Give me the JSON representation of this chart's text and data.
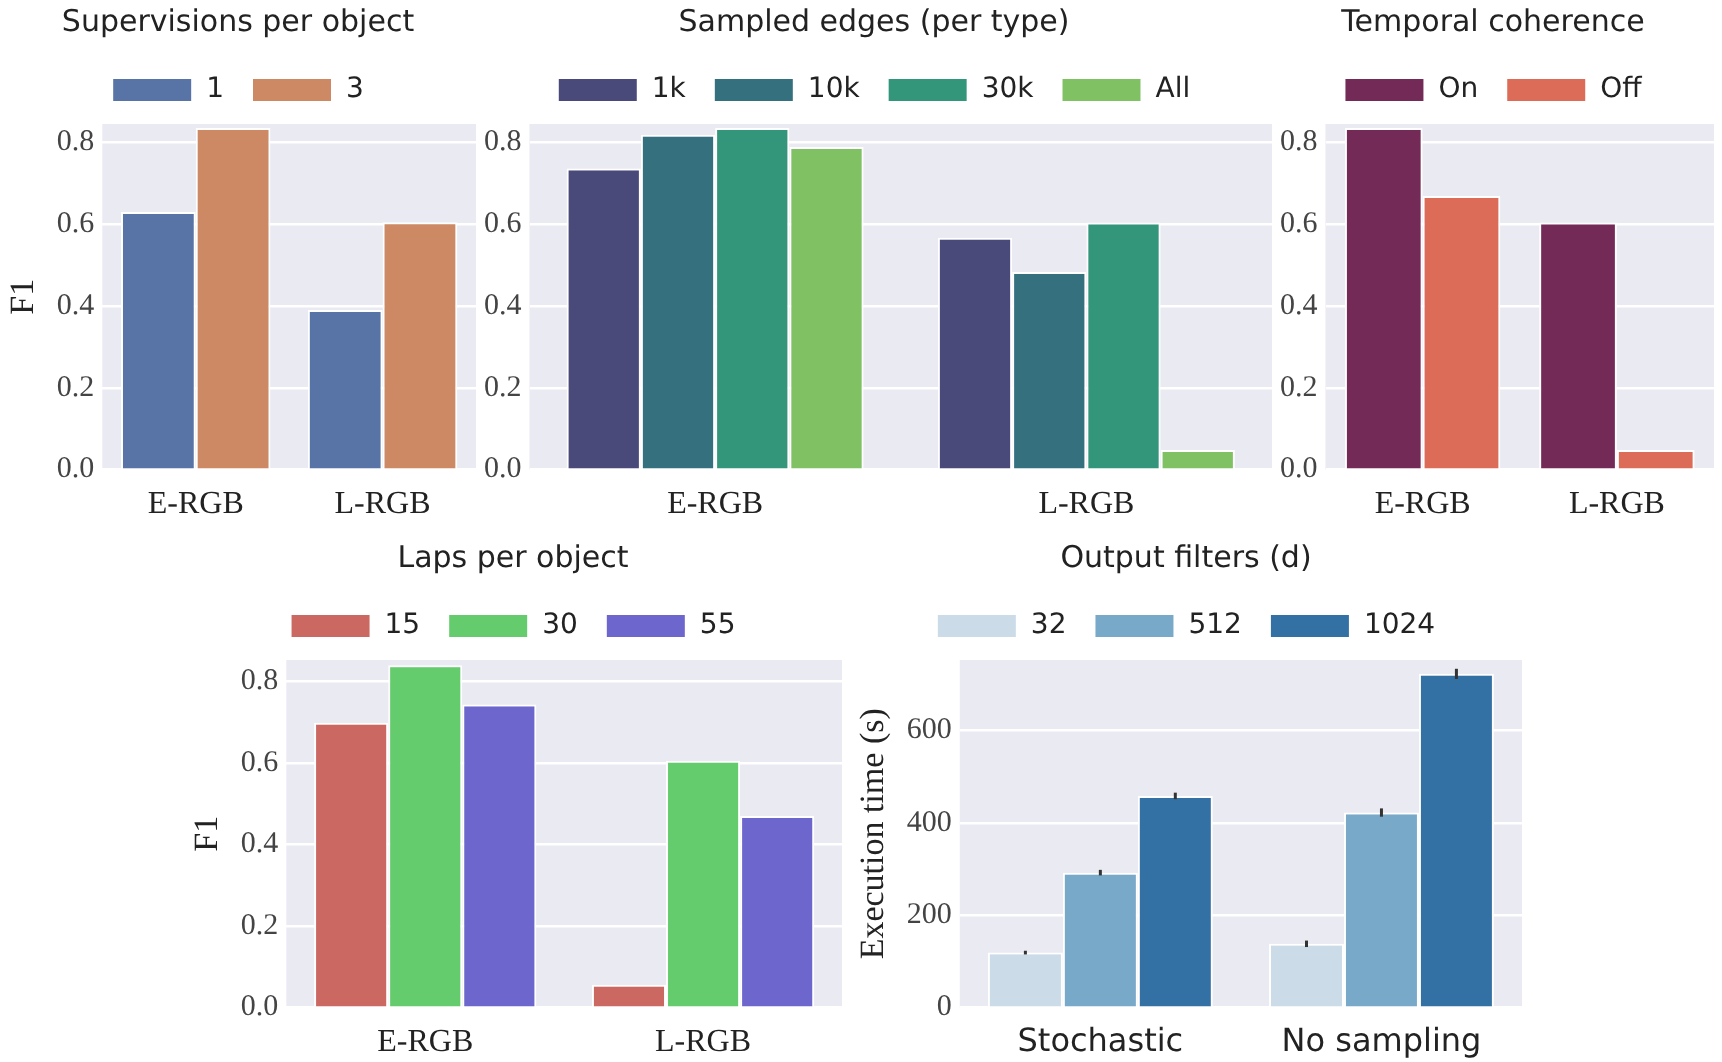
{
  "chart_data": [
    {
      "type": "bar",
      "legend_title": "Supervisions per object",
      "ylabel": "F1",
      "categories": [
        "E-RGB",
        "L-RGB"
      ],
      "series": [
        {
          "name": "1",
          "color": "#5874a7",
          "values": [
            0.63,
            0.39
          ]
        },
        {
          "name": "3",
          "color": "#cc8963",
          "values": [
            0.835,
            0.605
          ]
        }
      ],
      "ylim": [
        0,
        0.845
      ],
      "yticks": [
        {
          "value": 0,
          "label": "0.0"
        },
        {
          "value": 0.2,
          "label": "0.2"
        },
        {
          "value": 0.4,
          "label": "0.4"
        },
        {
          "value": 0.6,
          "label": "0.6"
        },
        {
          "value": 0.8,
          "label": "0.8"
        }
      ],
      "grid": "y",
      "legend": "top"
    },
    {
      "type": "bar",
      "legend_title": "Sampled edges (per type)",
      "categories": [
        "E-RGB",
        "L-RGB"
      ],
      "series": [
        {
          "name": "1k",
          "color": "#4a4a7a",
          "values": [
            0.736,
            0.567
          ]
        },
        {
          "name": "10k",
          "color": "#35707f",
          "values": [
            0.819,
            0.483
          ]
        },
        {
          "name": "30k",
          "color": "#33967a",
          "values": [
            0.835,
            0.604
          ]
        },
        {
          "name": "All",
          "color": "#80c263",
          "values": [
            0.789,
            0.048
          ]
        }
      ],
      "ylim": [
        0,
        0.845
      ],
      "yticks": [
        {
          "value": 0,
          "label": "0.0"
        },
        {
          "value": 0.2,
          "label": "0.2"
        },
        {
          "value": 0.4,
          "label": "0.4"
        },
        {
          "value": 0.6,
          "label": "0.6"
        },
        {
          "value": 0.8,
          "label": "0.8"
        }
      ],
      "grid": "y",
      "legend": "top"
    },
    {
      "type": "bar",
      "legend_title": "Temporal coherence",
      "categories": [
        "E-RGB",
        "L-RGB"
      ],
      "series": [
        {
          "name": "On",
          "color": "#742a56",
          "values": [
            0.835,
            0.604
          ]
        },
        {
          "name": "Off",
          "color": "#dc6c57",
          "values": [
            0.669,
            0.048
          ]
        }
      ],
      "ylim": [
        0,
        0.845
      ],
      "yticks": [
        {
          "value": 0,
          "label": "0.0"
        },
        {
          "value": 0.2,
          "label": "0.2"
        },
        {
          "value": 0.4,
          "label": "0.4"
        },
        {
          "value": 0.6,
          "label": "0.6"
        },
        {
          "value": 0.8,
          "label": "0.8"
        }
      ],
      "grid": "y",
      "legend": "top"
    },
    {
      "type": "bar",
      "legend_title": "Laps per object",
      "ylabel": "F1",
      "categories": [
        "E-RGB",
        "L-RGB"
      ],
      "series": [
        {
          "name": "15",
          "color": "#cb6861",
          "values": [
            0.699,
            0.056
          ]
        },
        {
          "name": "30",
          "color": "#64cc6d",
          "values": [
            0.84,
            0.606
          ]
        },
        {
          "name": "55",
          "color": "#6d66cc",
          "values": [
            0.744,
            0.47
          ]
        }
      ],
      "ylim": [
        0,
        0.853
      ],
      "yticks": [
        {
          "value": 0,
          "label": "0.0"
        },
        {
          "value": 0.2,
          "label": "0.2"
        },
        {
          "value": 0.4,
          "label": "0.4"
        },
        {
          "value": 0.6,
          "label": "0.6"
        },
        {
          "value": 0.8,
          "label": "0.8"
        }
      ],
      "grid": "y",
      "legend": "top"
    },
    {
      "type": "bar",
      "legend_title": "Output filters (d)",
      "ylabel": "Execution time (s)",
      "categories": [
        "Stochastic",
        "No sampling"
      ],
      "series": [
        {
          "name": "32",
          "color": "#cbdbe8",
          "values": [
            119,
            138
          ],
          "errors": [
            4,
            7
          ]
        },
        {
          "name": "512",
          "color": "#78a9c9",
          "values": [
            292,
            422
          ],
          "errors": [
            6,
            9
          ]
        },
        {
          "name": "1024",
          "color": "#3370a3",
          "values": [
            458,
            722
          ],
          "errors": [
            7,
            11
          ]
        }
      ],
      "ylim": [
        0,
        752
      ],
      "yticks": [
        0,
        200,
        400,
        600
      ],
      "grid": "y",
      "legend": "top"
    }
  ]
}
